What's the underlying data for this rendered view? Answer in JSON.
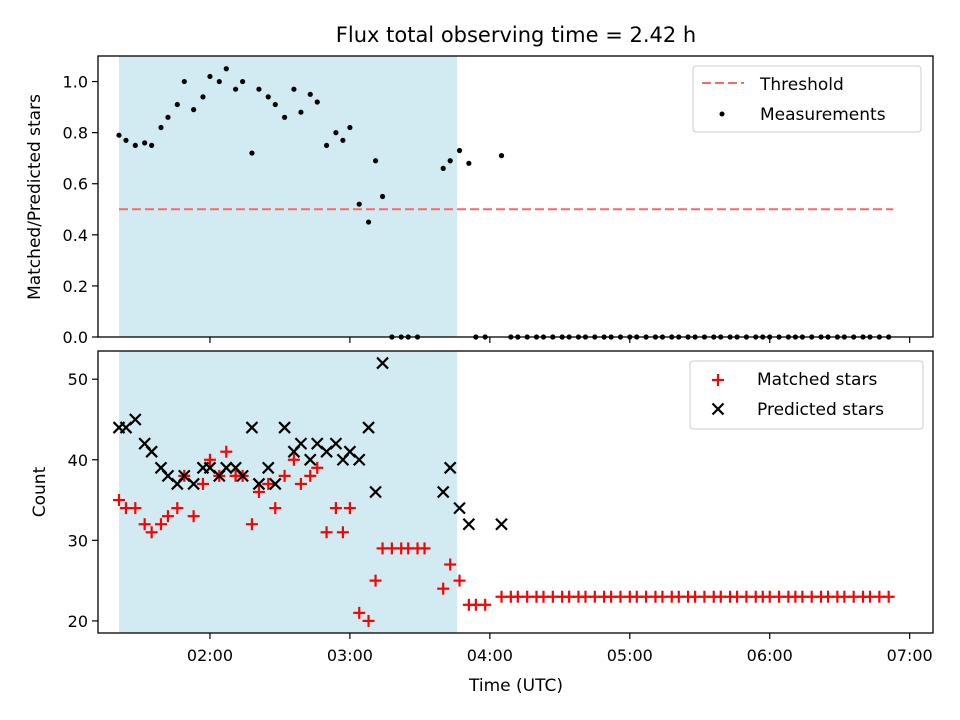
{
  "title": "Flux total observing time = 2.42 h",
  "colors": {
    "threshold": "#ff6666",
    "measurements": "#000000",
    "matched": "#ff0000",
    "predicted": "#000000",
    "shade": "#add8e6"
  },
  "chart_data": [
    {
      "type": "scatter",
      "ylabel": "Matched/Predicted stars",
      "ylim": [
        0,
        1.1
      ],
      "yticks": [
        "0.0",
        "0.2",
        "0.4",
        "0.6",
        "0.8",
        "1.0"
      ],
      "xlim": [
        "01:12",
        "07:10"
      ],
      "shaded_interval": [
        "01:21",
        "03:46"
      ],
      "legend": {
        "position": "top-right",
        "entries": [
          "Threshold",
          "Measurements"
        ]
      },
      "threshold": {
        "name": "Threshold",
        "y": 0.5,
        "x_range": [
          "01:21",
          "06:53"
        ],
        "style": "dashed"
      },
      "series": [
        {
          "name": "Measurements",
          "marker": "dot",
          "x": [
            "01:21",
            "01:24",
            "01:28",
            "01:32",
            "01:35",
            "01:39",
            "01:42",
            "01:46",
            "01:49",
            "01:53",
            "01:57",
            "02:00",
            "02:04",
            "02:07",
            "02:11",
            "02:14",
            "02:18",
            "02:21",
            "02:25",
            "02:28",
            "02:32",
            "02:36",
            "02:39",
            "02:43",
            "02:46",
            "02:50",
            "02:54",
            "02:57",
            "03:00",
            "03:04",
            "03:08",
            "03:11",
            "03:14",
            "03:18",
            "03:22",
            "03:25",
            "03:29",
            "03:32",
            "03:36",
            "03:40",
            "03:43",
            "03:47",
            "03:51",
            "03:54",
            "03:58",
            "04:02",
            "04:05",
            "04:09",
            "04:12",
            "04:16",
            "04:20",
            "04:23",
            "04:27",
            "04:31",
            "04:34",
            "04:38",
            "04:41",
            "04:45",
            "04:49",
            "04:52",
            "04:56",
            "05:00",
            "05:03",
            "05:07",
            "05:11",
            "05:14",
            "05:18",
            "05:21",
            "05:25",
            "05:28",
            "05:32",
            "05:36",
            "05:39",
            "05:43",
            "05:46",
            "05:50",
            "05:54",
            "05:57",
            "06:00",
            "06:04",
            "06:08",
            "06:11",
            "06:14",
            "06:18",
            "06:22",
            "06:25",
            "06:29",
            "06:32",
            "06:36",
            "06:40",
            "06:43",
            "06:47",
            "06:51"
          ],
          "y": [
            0.79,
            0.77,
            0.75,
            0.76,
            0.75,
            0.82,
            0.86,
            0.91,
            1.0,
            0.89,
            0.94,
            1.02,
            1.0,
            1.05,
            0.97,
            1.0,
            0.72,
            0.97,
            0.94,
            0.91,
            0.86,
            0.97,
            0.88,
            0.95,
            0.92,
            0.75,
            0.8,
            0.77,
            0.82,
            0.52,
            0.45,
            0.69,
            0.55,
            0,
            0,
            0,
            0,
            null,
            null,
            0.66,
            0.69,
            0.73,
            0.68,
            0,
            0,
            null,
            0.71,
            0,
            0,
            0,
            0,
            0,
            0,
            0,
            0,
            0,
            0,
            0,
            0,
            0,
            0,
            0,
            0,
            0,
            0,
            0,
            0,
            0,
            0,
            0,
            0,
            0,
            0,
            0,
            0,
            0,
            0,
            0,
            0,
            0,
            0,
            0,
            0,
            0,
            0,
            0,
            0,
            0,
            0,
            0,
            0,
            0,
            0
          ]
        }
      ]
    },
    {
      "type": "scatter",
      "ylabel": "Count",
      "xlabel": "Time (UTC)",
      "ylim": [
        18.5,
        53.5
      ],
      "yticks": [
        "20",
        "30",
        "40",
        "50"
      ],
      "xlim": [
        "01:12",
        "07:10"
      ],
      "xticks": [
        "02:00",
        "03:00",
        "04:00",
        "05:00",
        "06:00",
        "07:00"
      ],
      "shaded_interval": [
        "01:21",
        "03:46"
      ],
      "legend": {
        "position": "top-right",
        "entries": [
          "Matched stars",
          "Predicted stars"
        ]
      },
      "series": [
        {
          "name": "Matched stars",
          "marker": "plus",
          "x": [
            "01:21",
            "01:24",
            "01:28",
            "01:32",
            "01:35",
            "01:39",
            "01:42",
            "01:46",
            "01:49",
            "01:53",
            "01:57",
            "02:00",
            "02:04",
            "02:07",
            "02:11",
            "02:14",
            "02:18",
            "02:21",
            "02:25",
            "02:28",
            "02:32",
            "02:36",
            "02:39",
            "02:43",
            "02:46",
            "02:50",
            "02:54",
            "02:57",
            "03:00",
            "03:04",
            "03:08",
            "03:11",
            "03:14",
            "03:18",
            "03:22",
            "03:25",
            "03:29",
            "03:32",
            "03:36",
            "03:40",
            "03:43",
            "03:47",
            "03:51",
            "03:54",
            "03:58",
            "04:02",
            "04:05",
            "04:09",
            "04:12",
            "04:16",
            "04:20",
            "04:23",
            "04:27",
            "04:31",
            "04:34",
            "04:38",
            "04:41",
            "04:45",
            "04:49",
            "04:52",
            "04:56",
            "05:00",
            "05:03",
            "05:07",
            "05:11",
            "05:14",
            "05:18",
            "05:21",
            "05:25",
            "05:28",
            "05:32",
            "05:36",
            "05:39",
            "05:43",
            "05:46",
            "05:50",
            "05:54",
            "05:57",
            "06:00",
            "06:04",
            "06:08",
            "06:11",
            "06:14",
            "06:18",
            "06:22",
            "06:25",
            "06:29",
            "06:32",
            "06:36",
            "06:40",
            "06:43",
            "06:47",
            "06:51"
          ],
          "y": [
            35,
            34,
            34,
            32,
            31,
            32,
            33,
            34,
            38,
            33,
            37,
            40,
            38,
            41,
            38,
            38,
            32,
            36,
            37,
            34,
            38,
            40,
            37,
            38,
            39,
            31,
            34,
            31,
            34,
            21,
            20,
            25,
            29,
            29,
            29,
            29,
            29,
            29,
            null,
            24,
            27,
            25,
            22,
            22,
            22,
            null,
            23,
            23,
            23,
            23,
            23,
            23,
            23,
            23,
            23,
            23,
            23,
            23,
            23,
            23,
            23,
            23,
            23,
            23,
            23,
            23,
            23,
            23,
            23,
            23,
            23,
            23,
            23,
            23,
            23,
            23,
            23,
            23,
            23,
            23,
            23,
            23,
            23,
            23,
            23,
            23,
            23,
            23,
            23,
            23,
            23,
            23,
            23
          ]
        },
        {
          "name": "Predicted stars",
          "marker": "x",
          "x": [
            "01:21",
            "01:24",
            "01:28",
            "01:32",
            "01:35",
            "01:39",
            "01:42",
            "01:46",
            "01:49",
            "01:53",
            "01:57",
            "02:00",
            "02:04",
            "02:07",
            "02:11",
            "02:14",
            "02:18",
            "02:21",
            "02:25",
            "02:28",
            "02:32",
            "02:36",
            "02:39",
            "02:43",
            "02:46",
            "02:50",
            "02:54",
            "02:57",
            "03:00",
            "03:04",
            "03:08",
            "03:11",
            "03:14",
            "03:18",
            "03:22",
            "03:25",
            "03:29",
            "03:32",
            "03:36",
            "03:40",
            "03:43",
            "03:47",
            "03:51",
            "03:54",
            "03:58",
            "04:02",
            "04:05"
          ],
          "y": [
            44,
            44,
            45,
            42,
            41,
            39,
            38,
            37,
            38,
            37,
            39,
            39,
            38,
            39,
            39,
            38,
            44,
            37,
            39,
            37,
            44,
            41,
            42,
            40,
            42,
            41,
            42,
            40,
            41,
            40,
            44,
            36,
            52,
            null,
            null,
            null,
            null,
            null,
            null,
            36,
            39,
            34,
            32,
            null,
            null,
            null,
            32
          ]
        }
      ]
    }
  ]
}
